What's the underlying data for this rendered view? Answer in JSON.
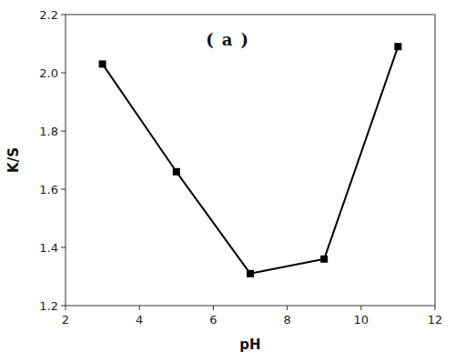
{
  "chart_data": {
    "type": "line",
    "x": [
      3,
      5,
      7,
      9,
      11
    ],
    "values": [
      2.03,
      1.66,
      1.31,
      1.36,
      2.09
    ],
    "xlabel": "pH",
    "ylabel": "K/S",
    "annotation": "( a )",
    "xlim": [
      2,
      12
    ],
    "ylim": [
      1.2,
      2.2
    ],
    "xticks": [
      2,
      4,
      6,
      8,
      10,
      12
    ],
    "yticks": [
      1.2,
      1.4,
      1.6,
      1.8,
      {
        "value": 2.0,
        "label": "2.0"
      },
      2.2
    ],
    "color": "#000000",
    "marker": "square",
    "grid": false
  }
}
